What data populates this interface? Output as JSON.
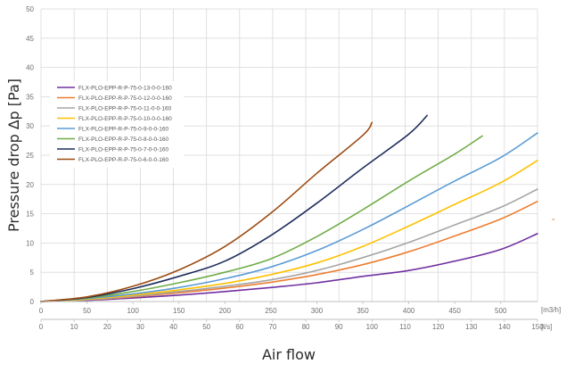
{
  "chart_data": {
    "type": "line",
    "title": "",
    "ylabel": "Pressure drop ∆p [Pa]",
    "xlabel": "Air flow",
    "x_unit_primary": "[m3/h]",
    "x_unit_secondary": "[l/s]",
    "xlim": [
      0,
      540
    ],
    "xlim_secondary": [
      0,
      150
    ],
    "ylim": [
      0,
      50
    ],
    "x_ticks_primary": [
      0,
      50,
      100,
      150,
      200,
      250,
      300,
      350,
      400,
      450,
      500
    ],
    "x_ticks_secondary": [
      0,
      10,
      20,
      30,
      40,
      50,
      60,
      70,
      80,
      90,
      100,
      110,
      120,
      130,
      140,
      150
    ],
    "y_ticks": [
      0,
      5,
      10,
      15,
      20,
      25,
      30,
      35,
      40,
      45,
      50
    ],
    "grid": true,
    "legend_position": "upper-left",
    "stray_marker": "-",
    "series": [
      {
        "name": "FLX-PLO-EPP-R-P-75-0-13-0-0-160",
        "color": "#7030a0",
        "points": [
          [
            0,
            0
          ],
          [
            50,
            0.2
          ],
          [
            100,
            0.6
          ],
          [
            150,
            1.1
          ],
          [
            200,
            1.7
          ],
          [
            250,
            2.4
          ],
          [
            300,
            3.2
          ],
          [
            350,
            4.3
          ],
          [
            400,
            5.3
          ],
          [
            450,
            6.9
          ],
          [
            500,
            8.9
          ],
          [
            540,
            11.6
          ]
        ]
      },
      {
        "name": "FLX-PLO-EPP-R-P-75-0-12-0-0-160",
        "color": "#ed7d31",
        "points": [
          [
            0,
            0
          ],
          [
            50,
            0.3
          ],
          [
            100,
            0.8
          ],
          [
            150,
            1.5
          ],
          [
            200,
            2.3
          ],
          [
            250,
            3.3
          ],
          [
            300,
            4.6
          ],
          [
            350,
            6.3
          ],
          [
            400,
            8.5
          ],
          [
            450,
            11.2
          ],
          [
            500,
            14.1
          ],
          [
            540,
            17.1
          ]
        ]
      },
      {
        "name": "FLX-PLO-EPP-R-P-75-0-11-0-0-160",
        "color": "#a5a5a5",
        "points": [
          [
            0,
            0
          ],
          [
            50,
            0.3
          ],
          [
            100,
            0.9
          ],
          [
            150,
            1.7
          ],
          [
            200,
            2.6
          ],
          [
            250,
            3.7
          ],
          [
            300,
            5.3
          ],
          [
            350,
            7.5
          ],
          [
            400,
            10.1
          ],
          [
            450,
            13.1
          ],
          [
            500,
            16.1
          ],
          [
            540,
            19.2
          ]
        ]
      },
      {
        "name": "FLX-PLO-EPP-R-P-75-0-10-0-0-160",
        "color": "#ffc000",
        "points": [
          [
            0,
            0
          ],
          [
            50,
            0.4
          ],
          [
            100,
            1.1
          ],
          [
            150,
            2.0
          ],
          [
            200,
            3.1
          ],
          [
            250,
            4.6
          ],
          [
            300,
            6.6
          ],
          [
            350,
            9.4
          ],
          [
            400,
            12.9
          ],
          [
            450,
            16.6
          ],
          [
            500,
            20.3
          ],
          [
            540,
            24.1
          ]
        ]
      },
      {
        "name": "FLX-PLO-EPP-R-P-75-0-9-0-0-160",
        "color": "#5b9bd5",
        "points": [
          [
            0,
            0
          ],
          [
            50,
            0.5
          ],
          [
            100,
            1.3
          ],
          [
            150,
            2.4
          ],
          [
            200,
            3.9
          ],
          [
            250,
            5.9
          ],
          [
            300,
            8.7
          ],
          [
            350,
            12.3
          ],
          [
            400,
            16.4
          ],
          [
            450,
            20.6
          ],
          [
            500,
            24.6
          ],
          [
            540,
            28.8
          ]
        ]
      },
      {
        "name": "FLX-PLO-EPP-R-P-75-0-8-0-0-160",
        "color": "#70ad47",
        "points": [
          [
            0,
            0
          ],
          [
            50,
            0.6
          ],
          [
            100,
            1.7
          ],
          [
            150,
            3.2
          ],
          [
            200,
            5.0
          ],
          [
            250,
            7.3
          ],
          [
            300,
            11.1
          ],
          [
            350,
            15.7
          ],
          [
            400,
            20.6
          ],
          [
            450,
            25.2
          ],
          [
            480,
            28.3
          ]
        ]
      },
      {
        "name": "FLX-PLO-EPP-R-P-75-0-7-0-0-160",
        "color": "#1f2d5c",
        "points": [
          [
            0,
            0
          ],
          [
            50,
            0.7
          ],
          [
            100,
            2.2
          ],
          [
            150,
            4.3
          ],
          [
            200,
            6.9
          ],
          [
            250,
            11.3
          ],
          [
            300,
            16.8
          ],
          [
            350,
            22.8
          ],
          [
            400,
            28.6
          ],
          [
            420,
            31.8
          ]
        ]
      },
      {
        "name": "FLX-PLO-EPP-R-P-75-0-6-0-0-160",
        "color": "#9c4a10",
        "points": [
          [
            0,
            0
          ],
          [
            50,
            0.8
          ],
          [
            100,
            2.6
          ],
          [
            150,
            5.4
          ],
          [
            200,
            9.4
          ],
          [
            250,
            15.1
          ],
          [
            300,
            21.9
          ],
          [
            350,
            28.4
          ],
          [
            360,
            30.6
          ]
        ]
      }
    ]
  }
}
